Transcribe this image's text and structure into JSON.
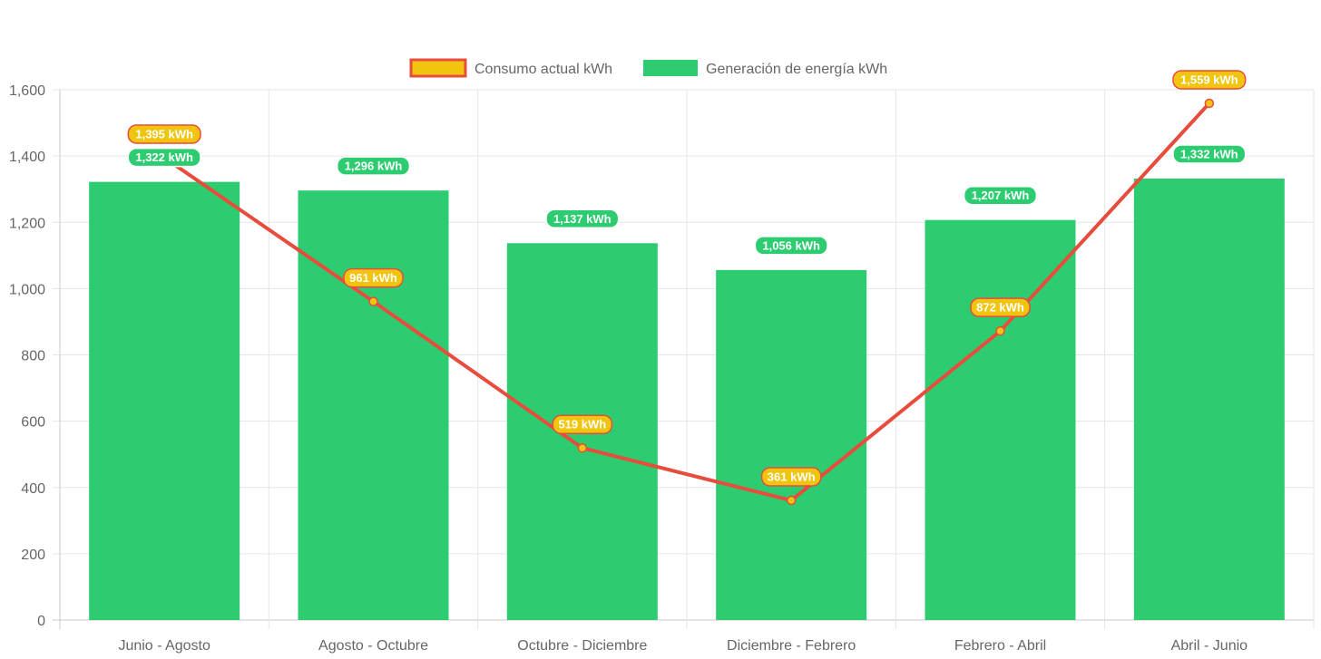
{
  "chart_data": {
    "type": "bar",
    "categories": [
      "Junio - Agosto",
      "Agosto - Octubre",
      "Octubre - Diciembre",
      "Diciembre - Febrero",
      "Febrero - Abril",
      "Abril - Junio"
    ],
    "series": [
      {
        "name": "Consumo actual kWh",
        "type": "line",
        "values": [
          1395,
          961,
          519,
          361,
          872,
          1559
        ],
        "labels": [
          "1,395 kWh",
          "961 kWh",
          "519 kWh",
          "361 kWh",
          "872 kWh",
          "1,559 kWh"
        ],
        "line_color": "#e74c3c",
        "fill_color": "#f1c40f"
      },
      {
        "name": "Generación de energía kWh",
        "type": "bar",
        "values": [
          1322,
          1296,
          1137,
          1056,
          1207,
          1332
        ],
        "labels": [
          "1,322 kWh",
          "1,296 kWh",
          "1,137 kWh",
          "1,056 kWh",
          "1,207 kWh",
          "1,332 kWh"
        ],
        "color": "#2ecc71"
      }
    ],
    "yticks": [
      "0",
      "200",
      "400",
      "600",
      "800",
      "1,000",
      "1,200",
      "1,400",
      "1,600"
    ],
    "ylim": [
      0,
      1600
    ],
    "ystep": 200,
    "grid": true,
    "legend_position": "top-center"
  }
}
